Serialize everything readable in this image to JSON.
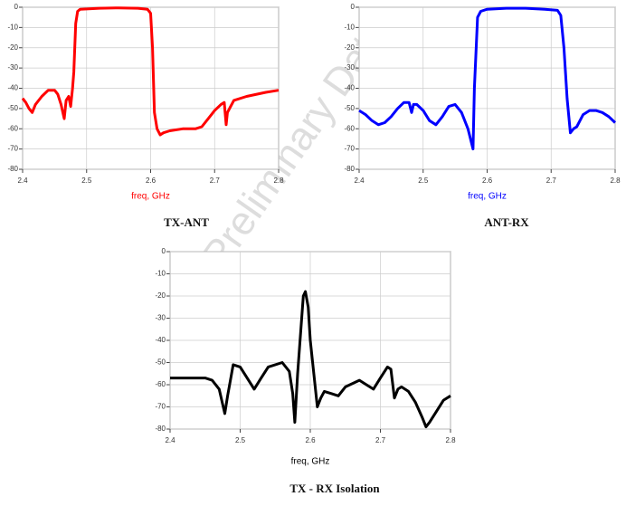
{
  "watermark": "Preliminary Data",
  "chart_data": [
    {
      "type": "line",
      "title": "TX-ANT",
      "xlabel": "freq, GHz",
      "color": "#ff0000",
      "x": [
        2.4,
        2.405,
        2.41,
        2.415,
        2.42,
        2.43,
        2.44,
        2.45,
        2.455,
        2.46,
        2.465,
        2.468,
        2.472,
        2.475,
        2.478,
        2.48,
        2.483,
        2.486,
        2.49,
        2.52,
        2.55,
        2.58,
        2.595,
        2.6,
        2.603,
        2.606,
        2.61,
        2.615,
        2.62,
        2.63,
        2.65,
        2.67,
        2.68,
        2.69,
        2.7,
        2.71,
        2.715,
        2.718,
        2.72,
        2.73,
        2.75,
        2.78,
        2.8
      ],
      "values": [
        -45,
        -47,
        -50,
        -52,
        -48,
        -44,
        -41,
        -41,
        -43,
        -48,
        -55,
        -46,
        -44,
        -49,
        -40,
        -32,
        -8,
        -2,
        -1,
        -0.5,
        -0.3,
        -0.5,
        -1,
        -3,
        -20,
        -52,
        -60,
        -63,
        -62,
        -61,
        -60,
        -60,
        -59,
        -55,
        -51,
        -48,
        -47,
        -58,
        -52,
        -46,
        -44,
        -42,
        -41
      ],
      "xlim": [
        2.4,
        2.8
      ],
      "xticks": [
        2.4,
        2.5,
        2.6,
        2.7,
        2.8
      ],
      "ylim": [
        -80,
        0
      ],
      "yticks": [
        0,
        -10,
        -20,
        -30,
        -40,
        -50,
        -60,
        -70,
        -80
      ],
      "grid": true
    },
    {
      "type": "line",
      "title": "ANT-RX",
      "xlabel": "freq, GHz",
      "color": "#0000ff",
      "x": [
        2.4,
        2.41,
        2.42,
        2.43,
        2.44,
        2.45,
        2.46,
        2.47,
        2.478,
        2.482,
        2.485,
        2.49,
        2.5,
        2.51,
        2.52,
        2.53,
        2.54,
        2.55,
        2.56,
        2.57,
        2.578,
        2.58,
        2.585,
        2.59,
        2.6,
        2.63,
        2.66,
        2.69,
        2.71,
        2.715,
        2.72,
        2.725,
        2.73,
        2.735,
        2.74,
        2.75,
        2.76,
        2.77,
        2.78,
        2.79,
        2.8
      ],
      "values": [
        -51,
        -53,
        -56,
        -58,
        -57,
        -54,
        -50,
        -47,
        -47,
        -52,
        -48,
        -48,
        -51,
        -56,
        -58,
        -54,
        -49,
        -48,
        -52,
        -60,
        -70,
        -40,
        -5,
        -2,
        -1,
        -0.5,
        -0.5,
        -1,
        -1.5,
        -4,
        -20,
        -45,
        -62,
        -60,
        -59,
        -53,
        -51,
        -51,
        -52,
        -54,
        -57
      ],
      "xlim": [
        2.4,
        2.8
      ],
      "xticks": [
        2.4,
        2.5,
        2.6,
        2.7,
        2.8
      ],
      "ylim": [
        -80,
        0
      ],
      "yticks": [
        0,
        -10,
        -20,
        -30,
        -40,
        -50,
        -60,
        -70,
        -80
      ],
      "grid": true
    },
    {
      "type": "line",
      "title": "TX - RX Isolation",
      "xlabel": "freq, GHz",
      "color": "#000000",
      "x": [
        2.4,
        2.45,
        2.46,
        2.47,
        2.478,
        2.482,
        2.49,
        2.5,
        2.51,
        2.52,
        2.53,
        2.54,
        2.56,
        2.57,
        2.575,
        2.578,
        2.582,
        2.59,
        2.593,
        2.597,
        2.6,
        2.605,
        2.61,
        2.615,
        2.62,
        2.63,
        2.64,
        2.65,
        2.67,
        2.68,
        2.69,
        2.7,
        2.71,
        2.715,
        2.72,
        2.725,
        2.73,
        2.74,
        2.75,
        2.76,
        2.765,
        2.77,
        2.78,
        2.79,
        2.8
      ],
      "values": [
        -57,
        -57,
        -58,
        -62,
        -73,
        -65,
        -51,
        -52,
        -57,
        -62,
        -57,
        -52,
        -50,
        -54,
        -64,
        -77,
        -55,
        -20,
        -18,
        -25,
        -40,
        -55,
        -70,
        -66,
        -63,
        -64,
        -65,
        -61,
        -58,
        -60,
        -62,
        -57,
        -52,
        -53,
        -66,
        -62,
        -61,
        -63,
        -68,
        -75,
        -79,
        -77,
        -72,
        -67,
        -65
      ],
      "xlim": [
        2.4,
        2.8
      ],
      "xticks": [
        2.4,
        2.5,
        2.6,
        2.7,
        2.8
      ],
      "ylim": [
        -80,
        0
      ],
      "yticks": [
        0,
        -10,
        -20,
        -30,
        -40,
        -50,
        -60,
        -70,
        -80
      ],
      "grid": true
    }
  ]
}
